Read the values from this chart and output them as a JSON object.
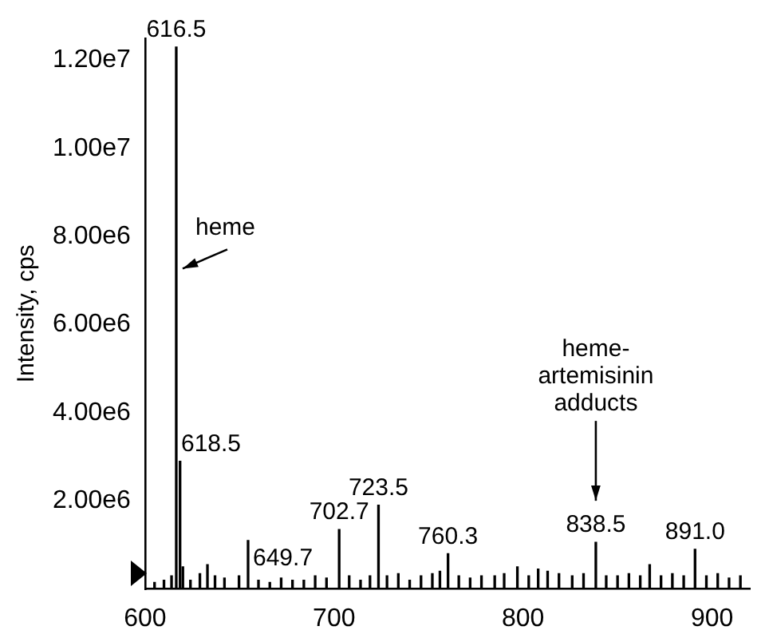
{
  "chart_data": {
    "type": "bar",
    "ylabel": "Intensity, cps",
    "x": [
      605,
      610,
      614,
      616.5,
      618.5,
      620,
      624,
      629,
      633,
      637,
      642,
      649.7,
      654.5,
      660,
      666,
      672,
      678,
      684,
      690,
      696,
      702.7,
      708,
      714,
      719,
      723.5,
      728,
      734,
      740,
      746,
      752,
      756,
      760.3,
      766,
      772,
      778,
      785,
      790,
      797,
      803,
      808,
      813,
      819,
      826,
      832,
      838.5,
      844,
      850,
      856,
      862,
      867,
      873,
      879,
      885,
      891.0,
      897,
      903,
      909,
      915
    ],
    "series": [
      {
        "color": "#000000",
        "values": [
          150000,
          200000,
          300000,
          12300000,
          2900000,
          500000,
          200000,
          350000,
          550000,
          300000,
          250000,
          300000,
          1100000,
          200000,
          150000,
          250000,
          200000,
          200000,
          300000,
          250000,
          1350000,
          300000,
          200000,
          300000,
          1900000,
          300000,
          350000,
          200000,
          300000,
          350000,
          400000,
          800000,
          300000,
          250000,
          300000,
          300000,
          350000,
          500000,
          300000,
          450000,
          400000,
          350000,
          300000,
          350000,
          1060000,
          300000,
          300000,
          350000,
          300000,
          550000,
          300000,
          350000,
          300000,
          900000,
          300000,
          350000,
          250000,
          300000
        ]
      }
    ],
    "xlim": [
      600,
      920
    ],
    "xticks": [
      600,
      700,
      800,
      900
    ],
    "ylim": [
      0,
      12500000
    ],
    "yticks": [
      {
        "value": 2000000,
        "label": "2.00e6"
      },
      {
        "value": 4000000,
        "label": "4.00e6"
      },
      {
        "value": 6000000,
        "label": "6.00e6"
      },
      {
        "value": 8000000,
        "label": "8.00e6"
      },
      {
        "value": 10000000,
        "label": "1.00e7"
      },
      {
        "value": 12000000,
        "label": "1.20e7"
      }
    ],
    "grid": false,
    "legend": false,
    "annotations": [
      {
        "text": "616.5",
        "x": 616.5,
        "y": 12300000
      },
      {
        "text": "618.5",
        "x": 618.5,
        "y": 2900000
      },
      {
        "text": "649.7",
        "x": 649.7,
        "y": 300000
      },
      {
        "text": "702.7",
        "x": 702.7,
        "y": 1350000
      },
      {
        "text": "723.5",
        "x": 723.5,
        "y": 1900000
      },
      {
        "text": "760.3",
        "x": 760.3,
        "y": 800000
      },
      {
        "text": "838.5",
        "x": 838.5,
        "y": 1060000
      },
      "heme-\nartemisinin\nadducts",
      {
        "text": "891.0",
        "x": 891.0,
        "y": 900000
      },
      {
        "text": "heme",
        "x": 616.5,
        "y": 7200000
      }
    ]
  }
}
